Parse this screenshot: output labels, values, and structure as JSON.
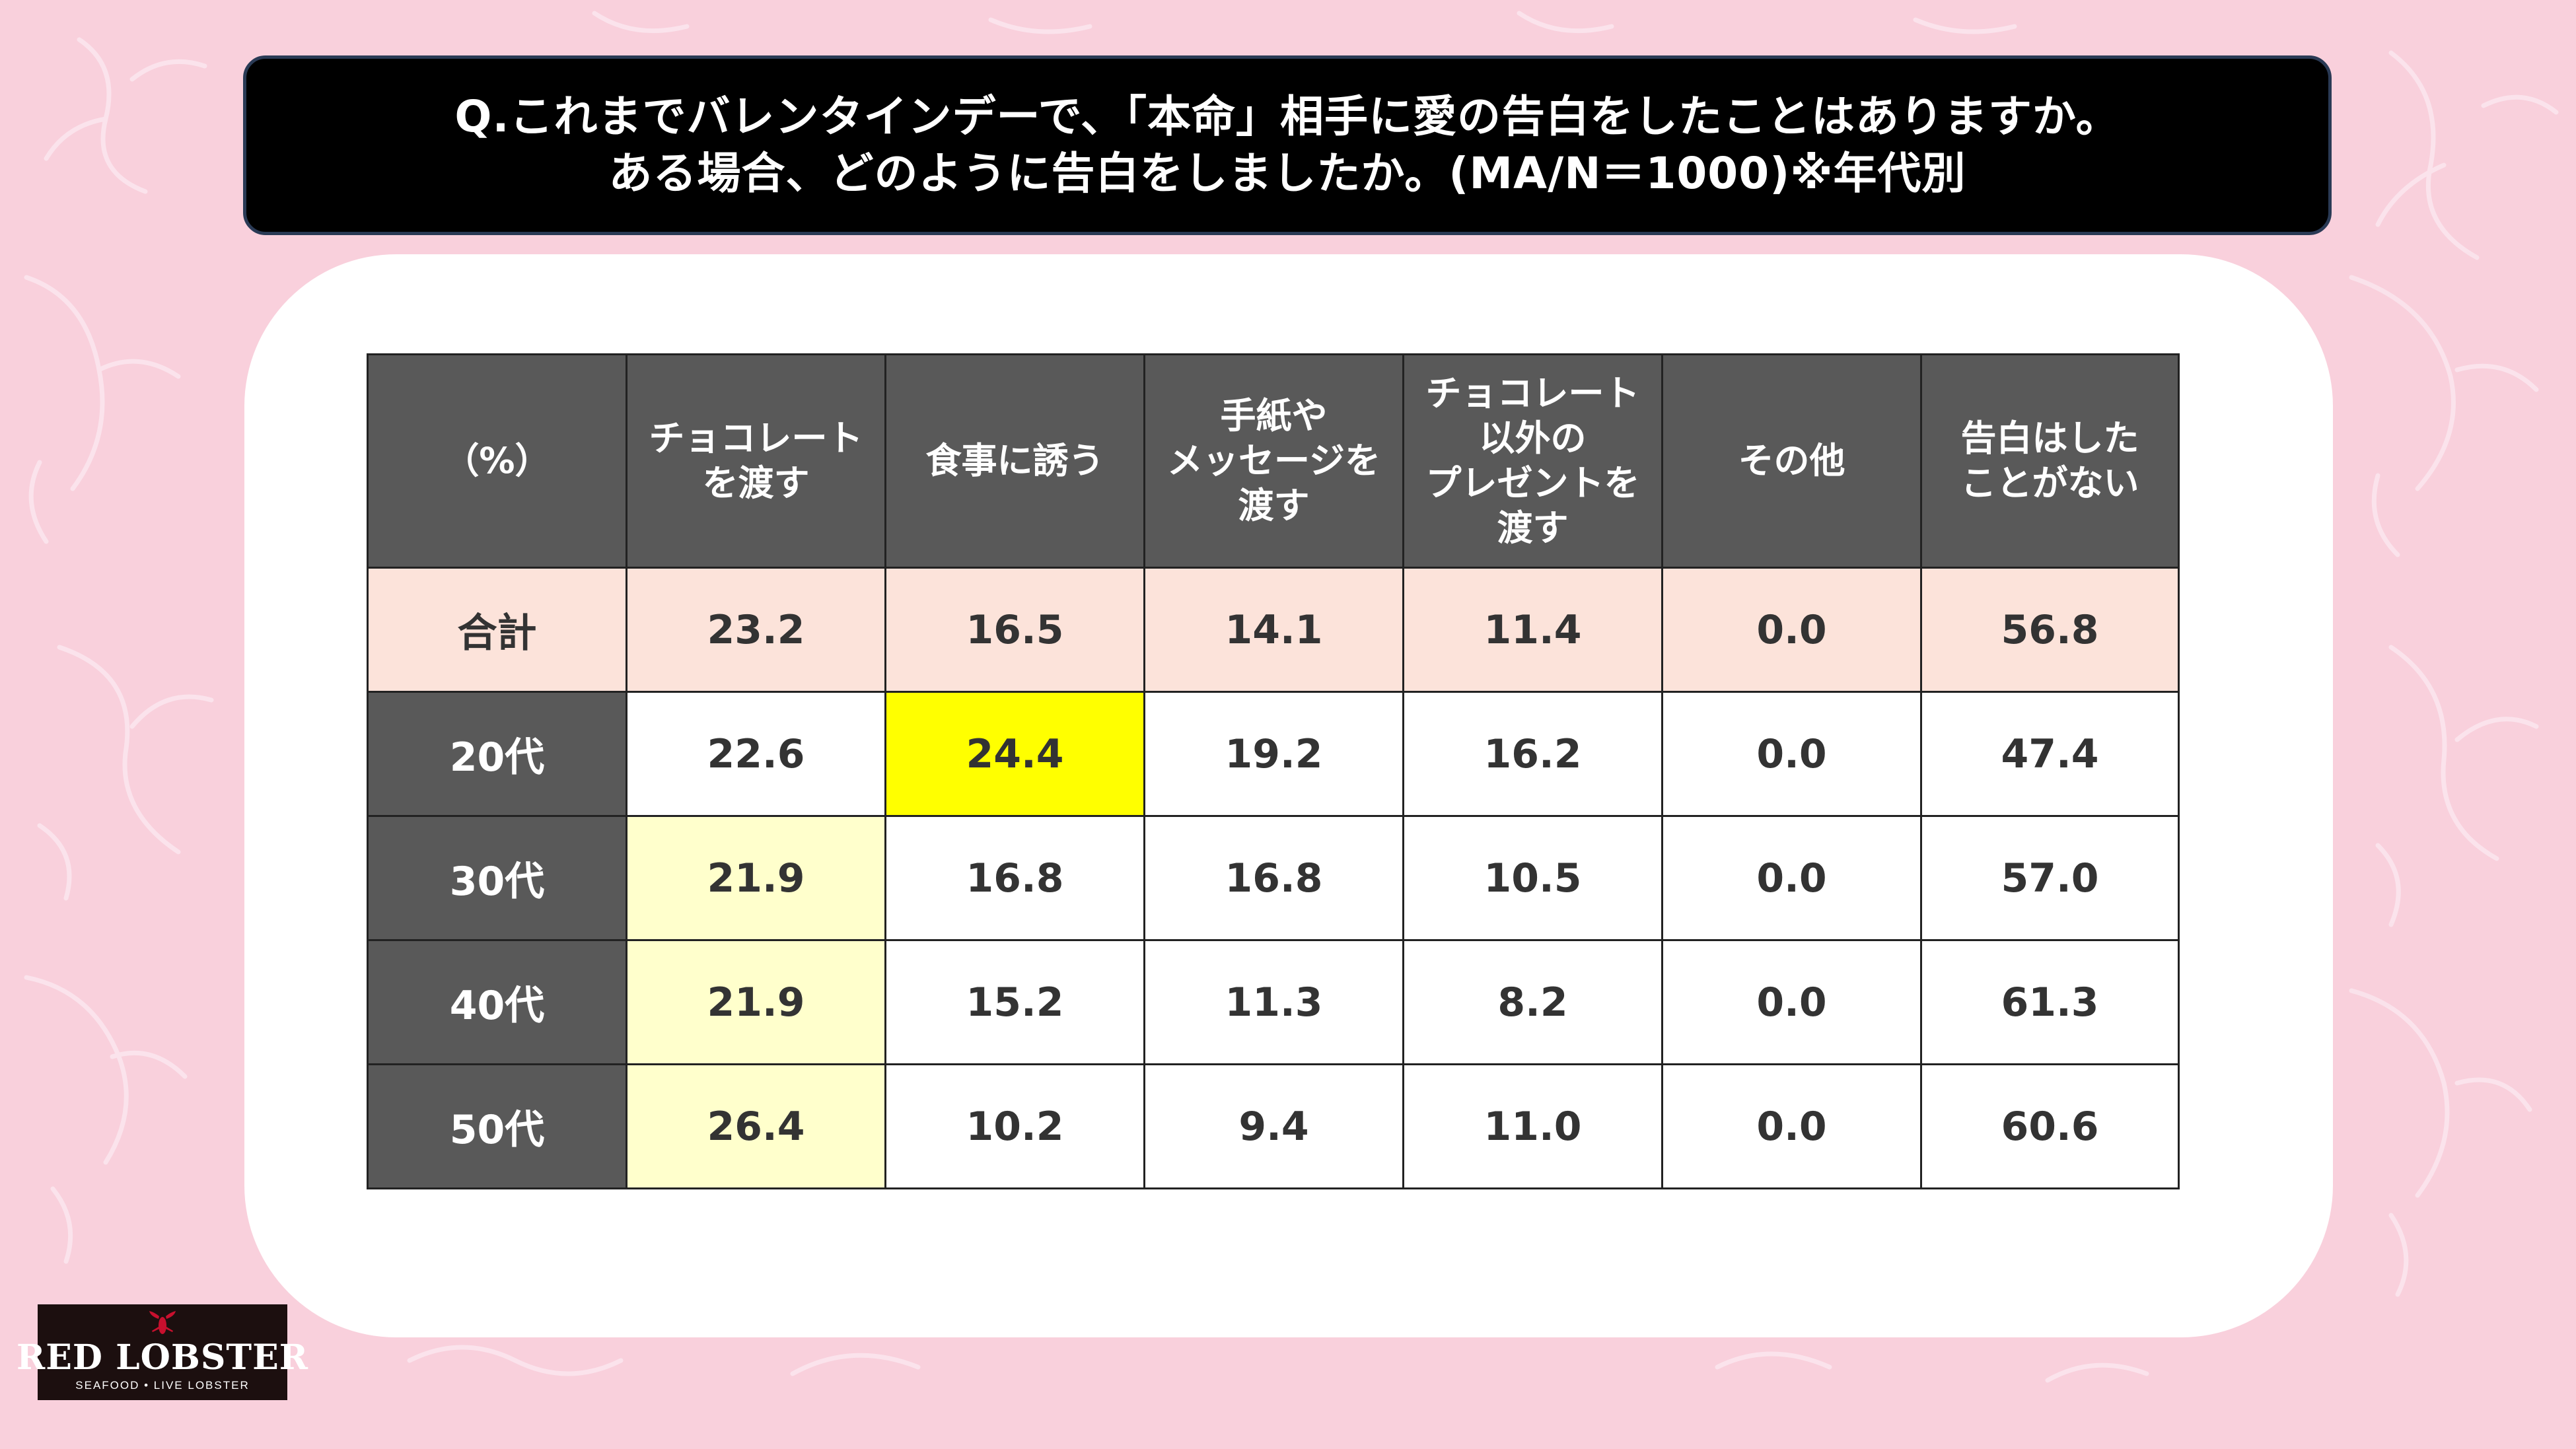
{
  "question": {
    "line1": "Q.これまでバレンタインデーで、「本命」相手に愛の告白をしたことはありますか。",
    "line2": "ある場合、どのように告白をしましたか。(MA/N＝1000)※年代別"
  },
  "colors": {
    "background": "#f9d0dc",
    "header_bg": "#595959",
    "total_row": "#fce3da",
    "highlight_strong": "#ffff00",
    "highlight_light": "#ffffcc"
  },
  "chart_data": {
    "type": "table",
    "columns": [
      "（%）",
      "チョコレート\nを渡す",
      "食事に誘う",
      "手紙や\nメッセージを\n渡す",
      "チョコレート\n以外の\nプレゼントを\n渡す",
      "その他",
      "告白はした\nことがない"
    ],
    "rows": [
      {
        "label": "合計",
        "values": [
          "23.2",
          "16.5",
          "14.1",
          "11.4",
          "0.0",
          "56.8"
        ],
        "highlight": [
          null,
          null,
          null,
          null,
          null,
          null
        ]
      },
      {
        "label": "20代",
        "values": [
          "22.6",
          "24.4",
          "19.2",
          "16.2",
          "0.0",
          "47.4"
        ],
        "highlight": [
          null,
          "strong",
          null,
          null,
          null,
          null
        ]
      },
      {
        "label": "30代",
        "values": [
          "21.9",
          "16.8",
          "16.8",
          "10.5",
          "0.0",
          "57.0"
        ],
        "highlight": [
          "light",
          null,
          null,
          null,
          null,
          null
        ]
      },
      {
        "label": "40代",
        "values": [
          "21.9",
          "15.2",
          "11.3",
          "8.2",
          "0.0",
          "61.3"
        ],
        "highlight": [
          "light",
          null,
          null,
          null,
          null,
          null
        ]
      },
      {
        "label": "50代",
        "values": [
          "26.4",
          "10.2",
          "9.4",
          "11.0",
          "0.0",
          "60.6"
        ],
        "highlight": [
          "light",
          null,
          null,
          null,
          null,
          null
        ]
      }
    ]
  },
  "logo": {
    "name": "RED LOBSTER",
    "tagline": "SEAFOOD • LIVE LOBSTER"
  }
}
